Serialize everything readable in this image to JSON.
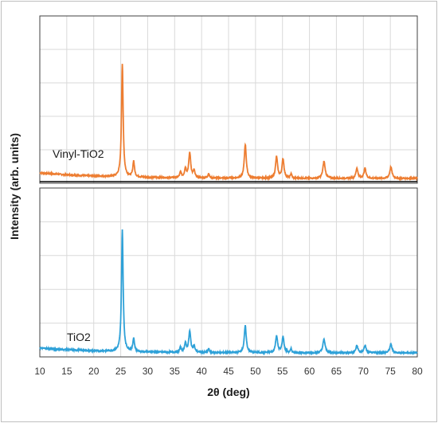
{
  "chart_data": {
    "type": "line",
    "xlabel": "2θ (deg)",
    "ylabel": "Intensity (arb. units)",
    "xlim": [
      10,
      80
    ],
    "x_ticks": [
      "10",
      "15",
      "20",
      "25",
      "30",
      "35",
      "40",
      "45",
      "50",
      "55",
      "60",
      "65",
      "70",
      "75",
      "80"
    ],
    "grid": "vertical and horizontal",
    "panels": [
      {
        "series_label": "Vinyl-TiO2",
        "color": "#ed7d31",
        "baseline": 0.05,
        "peaks": [
          {
            "x": 25.3,
            "h": 1.0,
            "w": 0.18
          },
          {
            "x": 27.4,
            "h": 0.14,
            "w": 0.18
          },
          {
            "x": 36.1,
            "h": 0.05,
            "w": 0.18
          },
          {
            "x": 37.0,
            "h": 0.08,
            "w": 0.2
          },
          {
            "x": 37.8,
            "h": 0.22,
            "w": 0.22
          },
          {
            "x": 38.6,
            "h": 0.06,
            "w": 0.18
          },
          {
            "x": 41.3,
            "h": 0.04,
            "w": 0.15
          },
          {
            "x": 48.1,
            "h": 0.3,
            "w": 0.22
          },
          {
            "x": 53.9,
            "h": 0.19,
            "w": 0.22
          },
          {
            "x": 55.1,
            "h": 0.17,
            "w": 0.22
          },
          {
            "x": 56.6,
            "h": 0.04,
            "w": 0.15
          },
          {
            "x": 62.7,
            "h": 0.15,
            "w": 0.25
          },
          {
            "x": 68.8,
            "h": 0.09,
            "w": 0.22
          },
          {
            "x": 70.3,
            "h": 0.09,
            "w": 0.22
          },
          {
            "x": 75.1,
            "h": 0.1,
            "w": 0.25
          }
        ]
      },
      {
        "series_label": "TiO2",
        "color": "#2ea1d8",
        "baseline": 0.04,
        "peaks": [
          {
            "x": 25.3,
            "h": 1.0,
            "w": 0.18
          },
          {
            "x": 27.4,
            "h": 0.11,
            "w": 0.18
          },
          {
            "x": 36.1,
            "h": 0.04,
            "w": 0.18
          },
          {
            "x": 37.0,
            "h": 0.07,
            "w": 0.2
          },
          {
            "x": 37.8,
            "h": 0.17,
            "w": 0.22
          },
          {
            "x": 38.6,
            "h": 0.05,
            "w": 0.18
          },
          {
            "x": 41.3,
            "h": 0.03,
            "w": 0.15
          },
          {
            "x": 48.1,
            "h": 0.22,
            "w": 0.22
          },
          {
            "x": 53.9,
            "h": 0.14,
            "w": 0.22
          },
          {
            "x": 55.1,
            "h": 0.13,
            "w": 0.22
          },
          {
            "x": 56.6,
            "h": 0.03,
            "w": 0.15
          },
          {
            "x": 62.7,
            "h": 0.11,
            "w": 0.25
          },
          {
            "x": 68.8,
            "h": 0.06,
            "w": 0.22
          },
          {
            "x": 70.3,
            "h": 0.06,
            "w": 0.22
          },
          {
            "x": 75.1,
            "h": 0.07,
            "w": 0.25
          }
        ]
      }
    ]
  }
}
